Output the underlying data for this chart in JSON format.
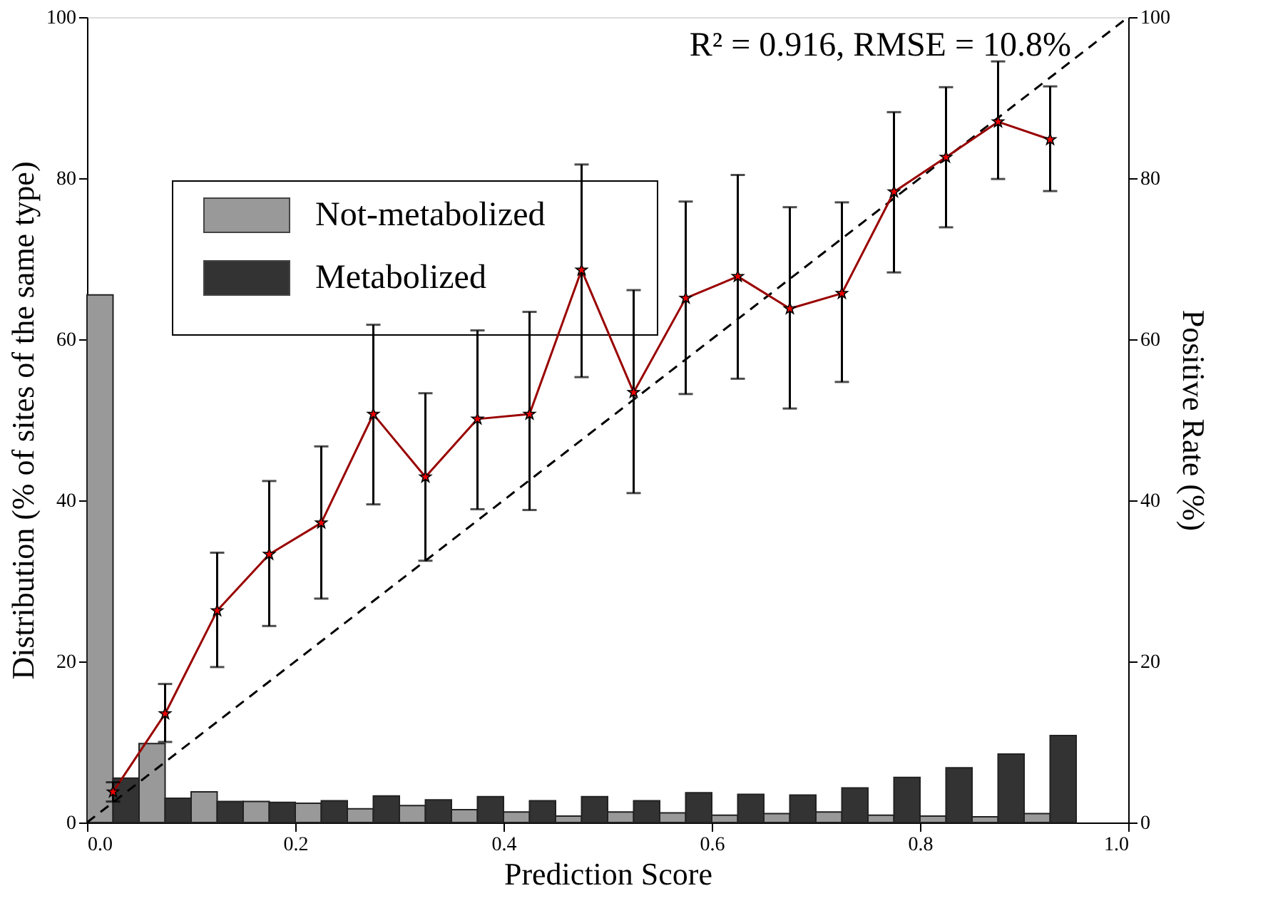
{
  "chart_data": {
    "type": "bar",
    "xlabel": "Prediction Score",
    "ylabel": "Distribution (% of sites of the same type)",
    "y2label": "Positive Rate (%)",
    "xlim": [
      0,
      1
    ],
    "xticks": [
      {
        "value": 0,
        "label": "0.0"
      },
      {
        "value": 0.2,
        "label": "0.2"
      },
      {
        "value": 0.4,
        "label": "0.4"
      },
      {
        "value": 0.6,
        "label": "0.6"
      },
      {
        "value": 0.8,
        "label": "0.8"
      },
      {
        "value": 1,
        "label": "1.0"
      }
    ],
    "ylim": [
      0,
      100
    ],
    "yticks": [
      0,
      20,
      40,
      60,
      80,
      100
    ],
    "y2lim": [
      0,
      100
    ],
    "y2ticks": [
      0,
      20,
      40,
      60,
      80,
      100
    ],
    "grid": false,
    "legend": "top left",
    "annotations": [
      "R² = 0.916, RMSE = 10.8%"
    ],
    "series": [
      {
        "name": "Not-metabolized",
        "color": "#999999",
        "x": [
          0.0125,
          0.0625,
          0.1125,
          0.1625,
          0.2125,
          0.2625,
          0.3125,
          0.3625,
          0.4125,
          0.4625,
          0.5125,
          0.5625,
          0.6125,
          0.6625,
          0.7125,
          0.7625,
          0.8125,
          0.8625,
          0.9125
        ],
        "values": [
          65.5,
          9.8,
          3.8,
          2.6,
          2.4,
          1.7,
          2.1,
          1.6,
          1.3,
          0.8,
          1.3,
          1.2,
          0.9,
          1.1,
          1.3,
          0.9,
          0.8,
          0.7,
          1.1
        ]
      },
      {
        "name": "Metabolized",
        "color": "#333333",
        "x": [
          0.0375,
          0.0875,
          0.1375,
          0.1875,
          0.2375,
          0.2875,
          0.3375,
          0.3875,
          0.4375,
          0.4875,
          0.5375,
          0.5875,
          0.6375,
          0.6875,
          0.7375,
          0.7875,
          0.8375,
          0.8875,
          0.9375
        ],
        "values": [
          5.5,
          3.0,
          2.6,
          2.5,
          2.7,
          3.3,
          2.8,
          3.2,
          2.7,
          3.2,
          2.7,
          3.7,
          3.5,
          3.4,
          4.3,
          5.6,
          6.8,
          8.5,
          10.8
        ]
      },
      {
        "type": "line",
        "axis": "y2",
        "color": "#000000",
        "line_style": "dashed",
        "marker": "none",
        "x": [
          0,
          1
        ],
        "values": [
          0,
          100
        ]
      },
      {
        "type": "line",
        "axis": "y2",
        "color": "#990000",
        "line_style": "solid",
        "marker": "star",
        "x": [
          0.025,
          0.075,
          0.125,
          0.175,
          0.225,
          0.275,
          0.325,
          0.375,
          0.425,
          0.475,
          0.525,
          0.575,
          0.625,
          0.675,
          0.725,
          0.775,
          0.825,
          0.875,
          0.925
        ],
        "values": [
          3.8,
          13.5,
          26.3,
          33.3,
          37.2,
          50.7,
          42.9,
          50.1,
          50.7,
          68.6,
          53.4,
          65.1,
          67.8,
          63.8,
          65.7,
          78.3,
          82.6,
          87.0,
          84.8
        ],
        "errors": [
          [
            2.6,
            5.0
          ],
          [
            10.0,
            17.2
          ],
          [
            19.3,
            33.5
          ],
          [
            24.4,
            42.4
          ],
          [
            27.8,
            46.7
          ],
          [
            39.5,
            61.8
          ],
          [
            32.5,
            53.3
          ],
          [
            38.9,
            61.1
          ],
          [
            38.8,
            63.4
          ],
          [
            55.3,
            81.7
          ],
          [
            40.9,
            66.1
          ],
          [
            53.2,
            77.1
          ],
          [
            55.1,
            80.4
          ],
          [
            51.4,
            76.4
          ],
          [
            54.7,
            77.0
          ],
          [
            68.3,
            88.2
          ],
          [
            73.9,
            91.3
          ],
          [
            79.9,
            94.5
          ],
          [
            78.4,
            91.4
          ]
        ]
      }
    ]
  }
}
